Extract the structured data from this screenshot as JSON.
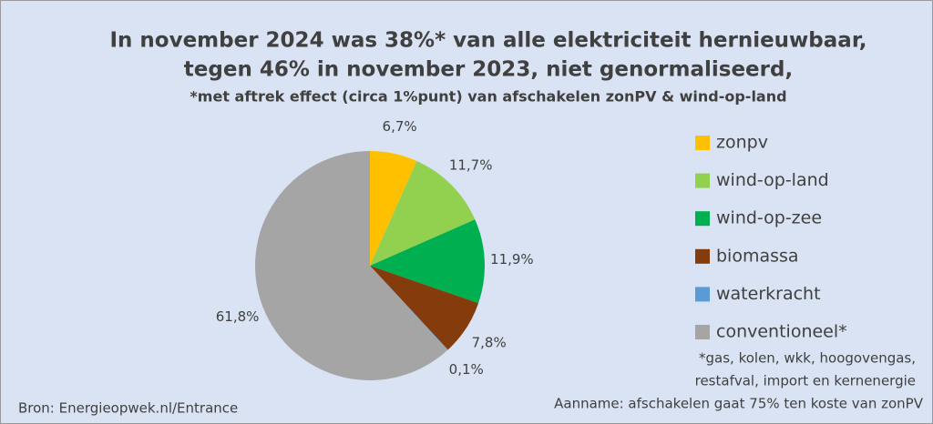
{
  "chart_data": {
    "type": "pie",
    "title_lines": [
      "In november 2024 was 38%* van alle elektriciteit hernieuwbaar,",
      "tegen 46% in november 2023, niet genormaliseerd,"
    ],
    "subtitle": "*met aftrek effect (circa 1%punt) van afschakelen zonPV & wind-op-land",
    "categories": [
      "zonpv",
      "wind-op-land",
      "wind-op-zee",
      "biomassa",
      "waterkracht",
      "conventioneel*"
    ],
    "values": [
      6.7,
      11.7,
      11.9,
      7.8,
      0.1,
      61.8
    ],
    "value_labels": [
      "6,7%",
      "11,7%",
      "11,9%",
      "7,8%",
      "0,1%",
      "61,8%"
    ],
    "colors": [
      "#ffc000",
      "#92d050",
      "#00b050",
      "#843c0c",
      "#5b9bd5",
      "#a5a5a5"
    ],
    "legend": "right",
    "notes": [
      "*gas, kolen, wkk, hoogovengas,",
      "restafval, import en kernenergie",
      "Aanname: afschakelen gaat 75% ten koste van zonPV"
    ],
    "source": "Bron: Energieopwek.nl/Entrance"
  }
}
